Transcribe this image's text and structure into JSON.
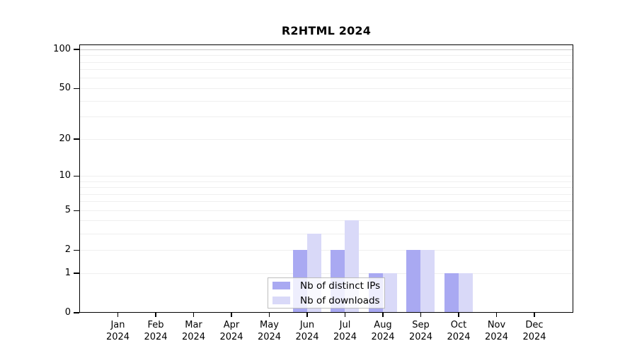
{
  "chart_data": {
    "type": "bar",
    "title": "R2HTML 2024",
    "categories": [
      "Jan",
      "Feb",
      "Mar",
      "Apr",
      "May",
      "Jun",
      "Jul",
      "Aug",
      "Sep",
      "Oct",
      "Nov",
      "Dec"
    ],
    "year_label": "2024",
    "series": [
      {
        "key": "distinct-ips",
        "name": "Nb of distinct IPs",
        "color": "#a9a9f2",
        "values": [
          0,
          0,
          0,
          0,
          0,
          2,
          2,
          1,
          2,
          1,
          0,
          0
        ]
      },
      {
        "key": "downloads",
        "name": "Nb of downloads",
        "color": "#d9d9f8",
        "values": [
          0,
          0,
          0,
          0,
          0,
          3,
          4,
          1,
          2,
          1,
          0,
          0
        ]
      }
    ],
    "xlabel": "",
    "ylabel": "",
    "y_axis": {
      "scale": "log10(1+x)",
      "tick_values": [
        0,
        1,
        2,
        5,
        10,
        20,
        50,
        100
      ],
      "gridline_values": [
        1,
        2,
        3,
        4,
        5,
        6,
        7,
        8,
        9,
        10,
        20,
        30,
        40,
        50,
        60,
        70,
        80,
        90,
        100
      ],
      "ylim": [
        0,
        110
      ]
    },
    "grid": true,
    "legend_position": "bottom-center",
    "colors": {
      "grid_minor": "#efefef",
      "grid_top": "#c9c9c9",
      "axis": "#000000",
      "background": "#ffffff"
    }
  }
}
